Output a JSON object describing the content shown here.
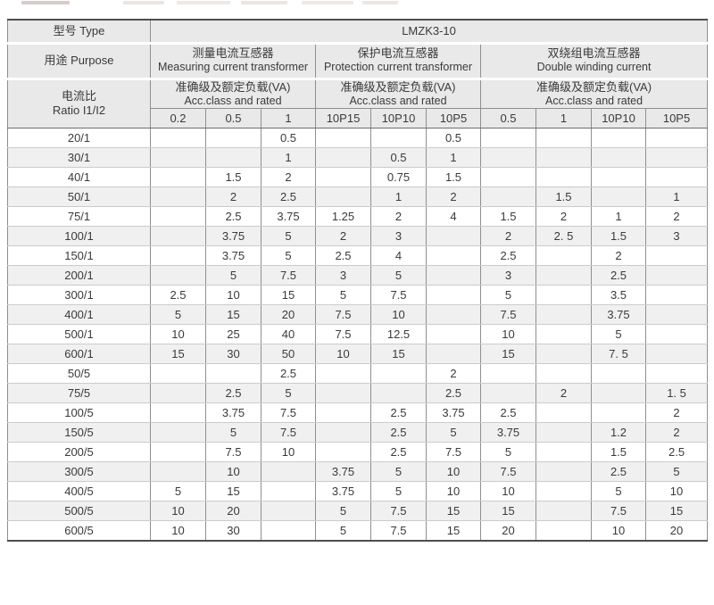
{
  "title_row": {
    "label": "型号 Type",
    "model": "LMZK3-10"
  },
  "purpose_row": {
    "label": "用途 Purpose"
  },
  "ratio_header": {
    "cn": "电流比",
    "en": "Ratio I1/I2"
  },
  "acc": {
    "cn": "准确级及额定负载(VA)",
    "en": "Acc.class and rated"
  },
  "groups": [
    {
      "cn": "测量电流互感器",
      "en": "Measuring current transformer"
    },
    {
      "cn": "保护电流互感器",
      "en": "Protection current transformer"
    },
    {
      "cn": "双绕组电流互感器",
      "en": "Double winding current"
    }
  ],
  "columns": [
    "0.2",
    "0.5",
    "1",
    "10P15",
    "10P10",
    "10P5",
    "0.5",
    "1",
    "10P10",
    "10P5"
  ],
  "rows": [
    {
      "ratio": "20/1",
      "values": [
        "",
        "",
        "0.5",
        "",
        "",
        "0.5",
        "",
        "",
        "",
        ""
      ]
    },
    {
      "ratio": "30/1",
      "values": [
        "",
        "",
        "1",
        "",
        "0.5",
        "1",
        "",
        "",
        "",
        ""
      ]
    },
    {
      "ratio": "40/1",
      "values": [
        "",
        "1.5",
        "2",
        "",
        "0.75",
        "1.5",
        "",
        "",
        "",
        ""
      ]
    },
    {
      "ratio": "50/1",
      "values": [
        "",
        "2",
        "2.5",
        "",
        "1",
        "2",
        "",
        "1.5",
        "",
        "1"
      ]
    },
    {
      "ratio": "75/1",
      "values": [
        "",
        "2.5",
        "3.75",
        "1.25",
        "2",
        "4",
        "1.5",
        "2",
        "1",
        "2"
      ]
    },
    {
      "ratio": "100/1",
      "values": [
        "",
        "3.75",
        "5",
        "2",
        "3",
        "",
        "2",
        "2. 5",
        "1.5",
        "3"
      ]
    },
    {
      "ratio": "150/1",
      "values": [
        "",
        "3.75",
        "5",
        "2.5",
        "4",
        "",
        "2.5",
        "",
        "2",
        ""
      ]
    },
    {
      "ratio": "200/1",
      "values": [
        "",
        "5",
        "7.5",
        "3",
        "5",
        "",
        "3",
        "",
        "2.5",
        ""
      ]
    },
    {
      "ratio": "300/1",
      "values": [
        "2.5",
        "10",
        "15",
        "5",
        "7.5",
        "",
        "5",
        "",
        "3.5",
        ""
      ]
    },
    {
      "ratio": "400/1",
      "values": [
        "5",
        "15",
        "20",
        "7.5",
        "10",
        "",
        "7.5",
        "",
        "3.75",
        ""
      ]
    },
    {
      "ratio": "500/1",
      "values": [
        "10",
        "25",
        "40",
        "7.5",
        "12.5",
        "",
        "10",
        "",
        "5",
        ""
      ]
    },
    {
      "ratio": "600/1",
      "values": [
        "15",
        "30",
        "50",
        "10",
        "15",
        "",
        "15",
        "",
        "7. 5",
        ""
      ]
    },
    {
      "ratio": "50/5",
      "values": [
        "",
        "",
        "2.5",
        "",
        "",
        "2",
        "",
        "",
        "",
        ""
      ]
    },
    {
      "ratio": "75/5",
      "values": [
        "",
        "2.5",
        "5",
        "",
        "",
        "2.5",
        "",
        "2",
        "",
        "1. 5"
      ]
    },
    {
      "ratio": "100/5",
      "values": [
        "",
        "3.75",
        "7.5",
        "",
        "2.5",
        "3.75",
        "2.5",
        "",
        "",
        "2"
      ]
    },
    {
      "ratio": "150/5",
      "values": [
        "",
        "5",
        "7.5",
        "",
        "2.5",
        "5",
        "3.75",
        "",
        "1.2",
        "2"
      ]
    },
    {
      "ratio": "200/5",
      "values": [
        "",
        "7.5",
        "10",
        "",
        "2.5",
        "7.5",
        "5",
        "",
        "1.5",
        "2.5"
      ]
    },
    {
      "ratio": "300/5",
      "values": [
        "",
        "10",
        "",
        "3.75",
        "5",
        "10",
        "7.5",
        "",
        "2.5",
        "5"
      ]
    },
    {
      "ratio": "400/5",
      "values": [
        "5",
        "15",
        "",
        "3.75",
        "5",
        "10",
        "10",
        "",
        "5",
        "10"
      ]
    },
    {
      "ratio": "500/5",
      "values": [
        "10",
        "20",
        "",
        "5",
        "7.5",
        "15",
        "15",
        "",
        "7.5",
        "15"
      ]
    },
    {
      "ratio": "600/5",
      "values": [
        "10",
        "30",
        "",
        "5",
        "7.5",
        "15",
        "20",
        "",
        "10",
        "20"
      ]
    }
  ],
  "colors": {
    "header_bg": "#e9e9e9",
    "row_stripe": "#f0f0f0",
    "border_outer": "#4d4d4d",
    "border_vertical": "#8f8f8f",
    "border_row": "#cbcbcb",
    "text": "#3a3a3a"
  }
}
